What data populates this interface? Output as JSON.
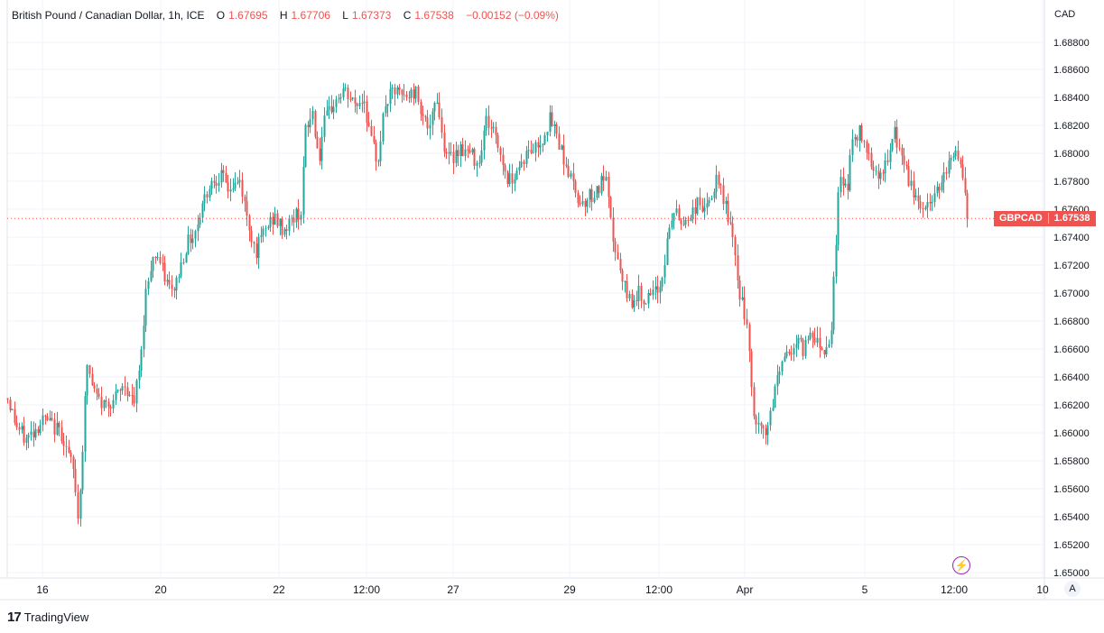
{
  "header": {
    "title": "British Pound / Canadian Dollar, 1h, ICE",
    "o_label": "O",
    "o_value": "1.67695",
    "h_label": "H",
    "h_value": "1.67706",
    "l_label": "L",
    "l_value": "1.67373",
    "c_label": "C",
    "c_value": "1.67538",
    "change": "−0.00152 (−0.09%)"
  },
  "currency": "CAD",
  "price_tag": {
    "symbol": "GBPCAD",
    "price": "1.67538"
  },
  "auto_label": "A",
  "footer": {
    "brand": "TradingView"
  },
  "colors": {
    "up": "#26a69a",
    "down": "#ef5350",
    "grid": "#f0f3fa",
    "text": "#131722"
  },
  "chart_data": {
    "type": "candlestick",
    "y_ticks": [
      "1.68800",
      "1.68600",
      "1.68400",
      "1.68200",
      "1.68000",
      "1.67800",
      "1.67600",
      "1.67400",
      "1.67200",
      "1.67000",
      "1.66800",
      "1.66600",
      "1.66400",
      "1.66200",
      "1.66000",
      "1.65800",
      "1.65600",
      "1.65400",
      "1.65200",
      "1.65000"
    ],
    "ylim": [
      1.6498,
      1.6898
    ],
    "x_ticks": [
      "16",
      "20",
      "22",
      "12:00",
      "27",
      "29",
      "12:00",
      "Apr",
      "5",
      "12:00",
      "10"
    ],
    "last_price": 1.67538,
    "close_path": [
      [
        0,
        1.6625
      ],
      [
        10,
        1.6605
      ],
      [
        20,
        1.6595
      ],
      [
        40,
        1.661
      ],
      [
        60,
        1.66
      ],
      [
        74,
        1.657
      ],
      [
        78,
        1.654
      ],
      [
        82,
        1.6575
      ],
      [
        88,
        1.665
      ],
      [
        95,
        1.663
      ],
      [
        105,
        1.662
      ],
      [
        120,
        1.6625
      ],
      [
        130,
        1.6635
      ],
      [
        140,
        1.662
      ],
      [
        148,
        1.6655
      ],
      [
        152,
        1.6695
      ],
      [
        158,
        1.672
      ],
      [
        165,
        1.673
      ],
      [
        172,
        1.6715
      ],
      [
        182,
        1.67
      ],
      [
        190,
        1.6715
      ],
      [
        198,
        1.6735
      ],
      [
        208,
        1.6745
      ],
      [
        216,
        1.6765
      ],
      [
        225,
        1.678
      ],
      [
        235,
        1.6785
      ],
      [
        245,
        1.6775
      ],
      [
        258,
        1.678
      ],
      [
        265,
        1.6755
      ],
      [
        275,
        1.673
      ],
      [
        285,
        1.6745
      ],
      [
        295,
        1.6755
      ],
      [
        305,
        1.6745
      ],
      [
        318,
        1.6755
      ],
      [
        325,
        1.676
      ],
      [
        330,
        1.6815
      ],
      [
        338,
        1.683
      ],
      [
        345,
        1.6795
      ],
      [
        350,
        1.682
      ],
      [
        360,
        1.6835
      ],
      [
        372,
        1.6845
      ],
      [
        385,
        1.6835
      ],
      [
        395,
        1.684
      ],
      [
        402,
        1.681
      ],
      [
        410,
        1.6795
      ],
      [
        418,
        1.6835
      ],
      [
        428,
        1.6845
      ],
      [
        440,
        1.684
      ],
      [
        452,
        1.6845
      ],
      [
        460,
        1.683
      ],
      [
        468,
        1.6815
      ],
      [
        475,
        1.6845
      ],
      [
        482,
        1.681
      ],
      [
        490,
        1.6795
      ],
      [
        500,
        1.6805
      ],
      [
        512,
        1.68
      ],
      [
        522,
        1.6795
      ],
      [
        530,
        1.6825
      ],
      [
        540,
        1.6815
      ],
      [
        548,
        1.6795
      ],
      [
        555,
        1.678
      ],
      [
        565,
        1.679
      ],
      [
        575,
        1.68
      ],
      [
        585,
        1.6805
      ],
      [
        592,
        1.681
      ],
      [
        600,
        1.6825
      ],
      [
        608,
        1.6815
      ],
      [
        615,
        1.68
      ],
      [
        625,
        1.678
      ],
      [
        635,
        1.6765
      ],
      [
        645,
        1.677
      ],
      [
        655,
        1.6775
      ],
      [
        662,
        1.6785
      ],
      [
        668,
        1.675
      ],
      [
        675,
        1.6725
      ],
      [
        682,
        1.6705
      ],
      [
        690,
        1.6695
      ],
      [
        700,
        1.67
      ],
      [
        710,
        1.6695
      ],
      [
        718,
        1.67
      ],
      [
        725,
        1.671
      ],
      [
        730,
        1.6735
      ],
      [
        738,
        1.676
      ],
      [
        746,
        1.675
      ],
      [
        755,
        1.6755
      ],
      [
        765,
        1.6765
      ],
      [
        775,
        1.676
      ],
      [
        785,
        1.678
      ],
      [
        795,
        1.6765
      ],
      [
        802,
        1.6745
      ],
      [
        808,
        1.671
      ],
      [
        815,
        1.669
      ],
      [
        820,
        1.667
      ],
      [
        825,
        1.662
      ],
      [
        830,
        1.6605
      ],
      [
        838,
        1.66
      ],
      [
        845,
        1.661
      ],
      [
        852,
        1.664
      ],
      [
        860,
        1.6655
      ],
      [
        868,
        1.666
      ],
      [
        875,
        1.6665
      ],
      [
        882,
        1.666
      ],
      [
        890,
        1.6675
      ],
      [
        898,
        1.6665
      ],
      [
        905,
        1.666
      ],
      [
        912,
        1.667
      ],
      [
        916,
        1.672
      ],
      [
        922,
        1.6785
      ],
      [
        930,
        1.6775
      ],
      [
        936,
        1.681
      ],
      [
        944,
        1.6815
      ],
      [
        952,
        1.6805
      ],
      [
        960,
        1.679
      ],
      [
        968,
        1.6785
      ],
      [
        975,
        1.6795
      ],
      [
        982,
        1.6815
      ],
      [
        990,
        1.68
      ],
      [
        998,
        1.678
      ],
      [
        1006,
        1.677
      ],
      [
        1014,
        1.676
      ],
      [
        1022,
        1.6765
      ],
      [
        1030,
        1.6775
      ],
      [
        1038,
        1.679
      ],
      [
        1046,
        1.6795
      ],
      [
        1052,
        1.6805
      ],
      [
        1058,
        1.678
      ],
      [
        1065,
        1.67538
      ]
    ]
  }
}
